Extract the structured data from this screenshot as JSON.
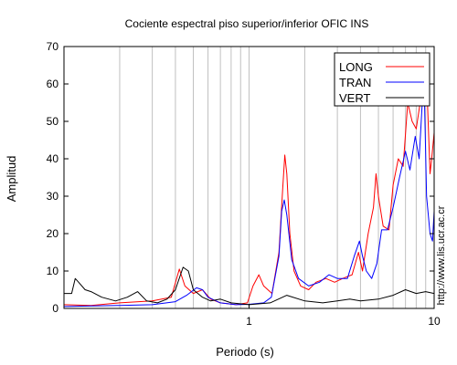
{
  "chart_data": {
    "type": "line",
    "title": "Cociente espectral piso superior/inferior  OFIC INS",
    "xlabel": "Periodo (s)",
    "ylabel": "Amplitud",
    "xscale": "log",
    "xlim": [
      0.1,
      10
    ],
    "ylim": [
      0,
      70
    ],
    "xticks": [
      1,
      10
    ],
    "xtick_labels": [
      "1",
      "10"
    ],
    "yticks": [
      0,
      10,
      20,
      30,
      40,
      50,
      60,
      70
    ],
    "grid": "vertical",
    "legend_position": "top-right",
    "side_annotation": "http://www.lis.ucr.ac.cr",
    "series": [
      {
        "name": "LONG",
        "color": "#ff0000",
        "points": [
          [
            0.1,
            1
          ],
          [
            0.14,
            0.8
          ],
          [
            0.2,
            1.5
          ],
          [
            0.3,
            2
          ],
          [
            0.38,
            3
          ],
          [
            0.42,
            10.5
          ],
          [
            0.45,
            6
          ],
          [
            0.5,
            4
          ],
          [
            0.56,
            5
          ],
          [
            0.62,
            2.5
          ],
          [
            0.7,
            1.5
          ],
          [
            0.85,
            1
          ],
          [
            0.98,
            1.5
          ],
          [
            1.05,
            6
          ],
          [
            1.13,
            9
          ],
          [
            1.2,
            6
          ],
          [
            1.33,
            4
          ],
          [
            1.45,
            15
          ],
          [
            1.52,
            32
          ],
          [
            1.56,
            41
          ],
          [
            1.6,
            36
          ],
          [
            1.66,
            20
          ],
          [
            1.75,
            10
          ],
          [
            1.9,
            6
          ],
          [
            2.1,
            5
          ],
          [
            2.3,
            7
          ],
          [
            2.6,
            8
          ],
          [
            2.9,
            7
          ],
          [
            3.2,
            8
          ],
          [
            3.6,
            9
          ],
          [
            3.9,
            15
          ],
          [
            4.1,
            10
          ],
          [
            4.4,
            20
          ],
          [
            4.7,
            27
          ],
          [
            4.85,
            36
          ],
          [
            5.0,
            30
          ],
          [
            5.3,
            22
          ],
          [
            5.7,
            21
          ],
          [
            6.0,
            33
          ],
          [
            6.4,
            40
          ],
          [
            6.8,
            38
          ],
          [
            7.2,
            55
          ],
          [
            7.6,
            50
          ],
          [
            8.0,
            48
          ],
          [
            8.4,
            55
          ],
          [
            8.8,
            64
          ],
          [
            9.2,
            55
          ],
          [
            9.5,
            36
          ],
          [
            9.7,
            40
          ],
          [
            10.0,
            47
          ]
        ]
      },
      {
        "name": "TRAN",
        "color": "#0000ff",
        "points": [
          [
            0.1,
            0.5
          ],
          [
            0.2,
            0.8
          ],
          [
            0.3,
            1
          ],
          [
            0.4,
            1.8
          ],
          [
            0.46,
            3.5
          ],
          [
            0.52,
            5.5
          ],
          [
            0.56,
            5
          ],
          [
            0.6,
            3
          ],
          [
            0.7,
            1.5
          ],
          [
            0.85,
            1
          ],
          [
            1.0,
            1.1
          ],
          [
            1.2,
            1.5
          ],
          [
            1.32,
            3
          ],
          [
            1.45,
            14
          ],
          [
            1.5,
            26
          ],
          [
            1.55,
            29
          ],
          [
            1.6,
            25
          ],
          [
            1.7,
            13
          ],
          [
            1.85,
            8
          ],
          [
            2.1,
            6
          ],
          [
            2.4,
            7
          ],
          [
            2.7,
            9
          ],
          [
            3.0,
            8
          ],
          [
            3.4,
            8
          ],
          [
            3.7,
            14
          ],
          [
            3.95,
            18
          ],
          [
            4.1,
            14
          ],
          [
            4.3,
            10
          ],
          [
            4.6,
            8
          ],
          [
            4.9,
            12
          ],
          [
            5.2,
            21
          ],
          [
            5.6,
            21
          ],
          [
            6.0,
            27
          ],
          [
            6.5,
            35
          ],
          [
            7.0,
            42
          ],
          [
            7.4,
            37
          ],
          [
            7.9,
            46
          ],
          [
            8.3,
            40
          ],
          [
            8.8,
            63
          ],
          [
            9.1,
            30
          ],
          [
            9.5,
            20
          ],
          [
            9.8,
            18
          ],
          [
            10.0,
            26
          ]
        ]
      },
      {
        "name": "VERT",
        "color": "#000000",
        "points": [
          [
            0.1,
            4
          ],
          [
            0.11,
            4
          ],
          [
            0.115,
            8
          ],
          [
            0.12,
            7
          ],
          [
            0.13,
            5
          ],
          [
            0.14,
            4.5
          ],
          [
            0.16,
            3
          ],
          [
            0.19,
            2
          ],
          [
            0.22,
            3
          ],
          [
            0.25,
            4.5
          ],
          [
            0.28,
            2
          ],
          [
            0.32,
            1.5
          ],
          [
            0.36,
            2.5
          ],
          [
            0.4,
            5
          ],
          [
            0.44,
            11
          ],
          [
            0.47,
            10
          ],
          [
            0.5,
            5
          ],
          [
            0.56,
            3
          ],
          [
            0.62,
            2
          ],
          [
            0.7,
            2.5
          ],
          [
            0.8,
            1.5
          ],
          [
            1.0,
            1
          ],
          [
            1.3,
            1.5
          ],
          [
            1.6,
            3.5
          ],
          [
            2.0,
            2
          ],
          [
            2.5,
            1.5
          ],
          [
            3.0,
            2
          ],
          [
            3.5,
            2.5
          ],
          [
            4.0,
            2
          ],
          [
            5.0,
            2.5
          ],
          [
            6.0,
            3.5
          ],
          [
            7.0,
            5
          ],
          [
            8.0,
            4
          ],
          [
            9.0,
            4.5
          ],
          [
            10.0,
            4
          ]
        ]
      }
    ]
  }
}
